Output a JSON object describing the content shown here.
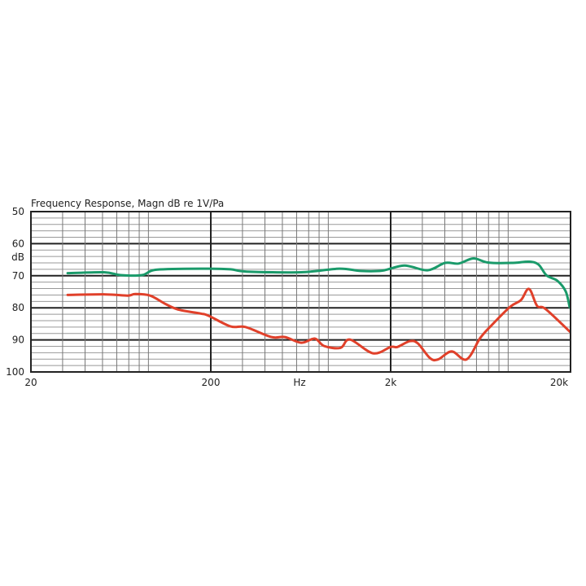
{
  "chart_data": {
    "type": "line",
    "title": "Frequency Response, Magn  dB re 1V/Pa",
    "xlabel": "Hz",
    "ylabel": "dB",
    "x_scale": "log",
    "xlim": [
      20,
      20000
    ],
    "ylim": [
      50,
      100
    ],
    "y_axis_inverted": true,
    "grid": true,
    "x_tick_labels": [
      {
        "value": 20,
        "label": "20"
      },
      {
        "value": 200,
        "label": "200"
      },
      {
        "value": 2000,
        "label": "2k"
      },
      {
        "value": 20000,
        "label": "20k"
      }
    ],
    "y_tick_labels": [
      {
        "value": 50,
        "label": "50"
      },
      {
        "value": 60,
        "label": "60"
      },
      {
        "value": 70,
        "label": "70"
      },
      {
        "value": 80,
        "label": "80"
      },
      {
        "value": 90,
        "label": "90"
      },
      {
        "value": 100,
        "label": "100"
      }
    ],
    "series": [
      {
        "color": "#1a9a6a",
        "x": [
          32,
          51,
          63,
          83,
          101,
          195,
          258,
          317,
          636,
          1035,
          1365,
          1800,
          2380,
          3200,
          4010,
          4770,
          5770,
          6980,
          9550,
          11750,
          13270,
          14720,
          16930,
          18800,
          19800
        ],
        "y": [
          69.2,
          68.9,
          69.8,
          69.8,
          68.1,
          67.8,
          68.0,
          68.7,
          68.9,
          67.8,
          68.5,
          68.4,
          66.8,
          68.3,
          66.0,
          66.2,
          64.6,
          65.9,
          66.0,
          65.6,
          66.5,
          69.9,
          71.6,
          74.9,
          79.9
        ]
      },
      {
        "color": "#e0402a",
        "x": [
          32,
          52,
          69,
          76,
          92,
          112,
          133,
          176,
          195,
          258,
          312,
          434,
          516,
          636,
          757,
          853,
          1052,
          1188,
          1595,
          2000,
          2183,
          2553,
          2831,
          3311,
          3673,
          4366,
          5284,
          6296,
          7231,
          9225,
          10600,
          11750,
          13040,
          14480,
          19800
        ],
        "y": [
          76.0,
          75.8,
          76.2,
          75.7,
          76.2,
          78.8,
          80.6,
          81.8,
          82.5,
          85.8,
          86.0,
          89.1,
          89.1,
          90.9,
          89.6,
          91.9,
          92.5,
          89.9,
          94.2,
          92.2,
          92.2,
          90.4,
          91.1,
          95.7,
          96.1,
          93.6,
          96.1,
          89.4,
          85.6,
          79.7,
          77.6,
          74.1,
          79.4,
          80.3,
          87.4
        ]
      }
    ]
  }
}
